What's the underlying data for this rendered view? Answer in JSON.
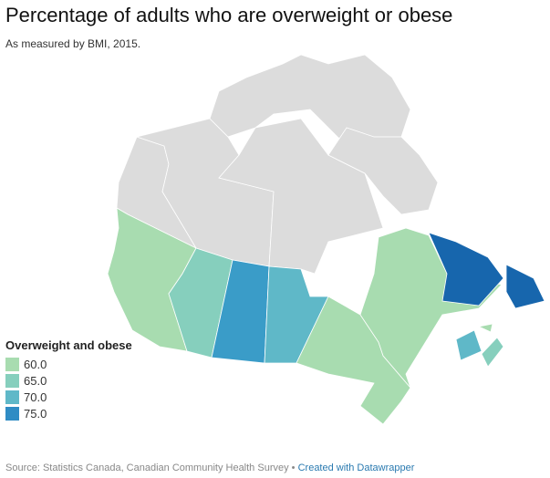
{
  "title": "Percentage of adults who are overweight or obese",
  "subtitle": "As measured by BMI, 2015.",
  "legend": {
    "title": "Overweight and obese",
    "items": [
      {
        "label": "60.0",
        "color": "#a8dcb0"
      },
      {
        "label": "65.0",
        "color": "#86cfbd"
      },
      {
        "label": "70.0",
        "color": "#5fb8c8"
      },
      {
        "label": "75.0",
        "color": "#2f8cc4"
      }
    ]
  },
  "colors": {
    "no_data": "#dcdcdc",
    "highest": "#1766ad"
  },
  "footer": {
    "source": "Source: Statistics Canada, Canadian Community Health Survey",
    "separator": "•",
    "credit": "Created with Datawrapper"
  }
}
